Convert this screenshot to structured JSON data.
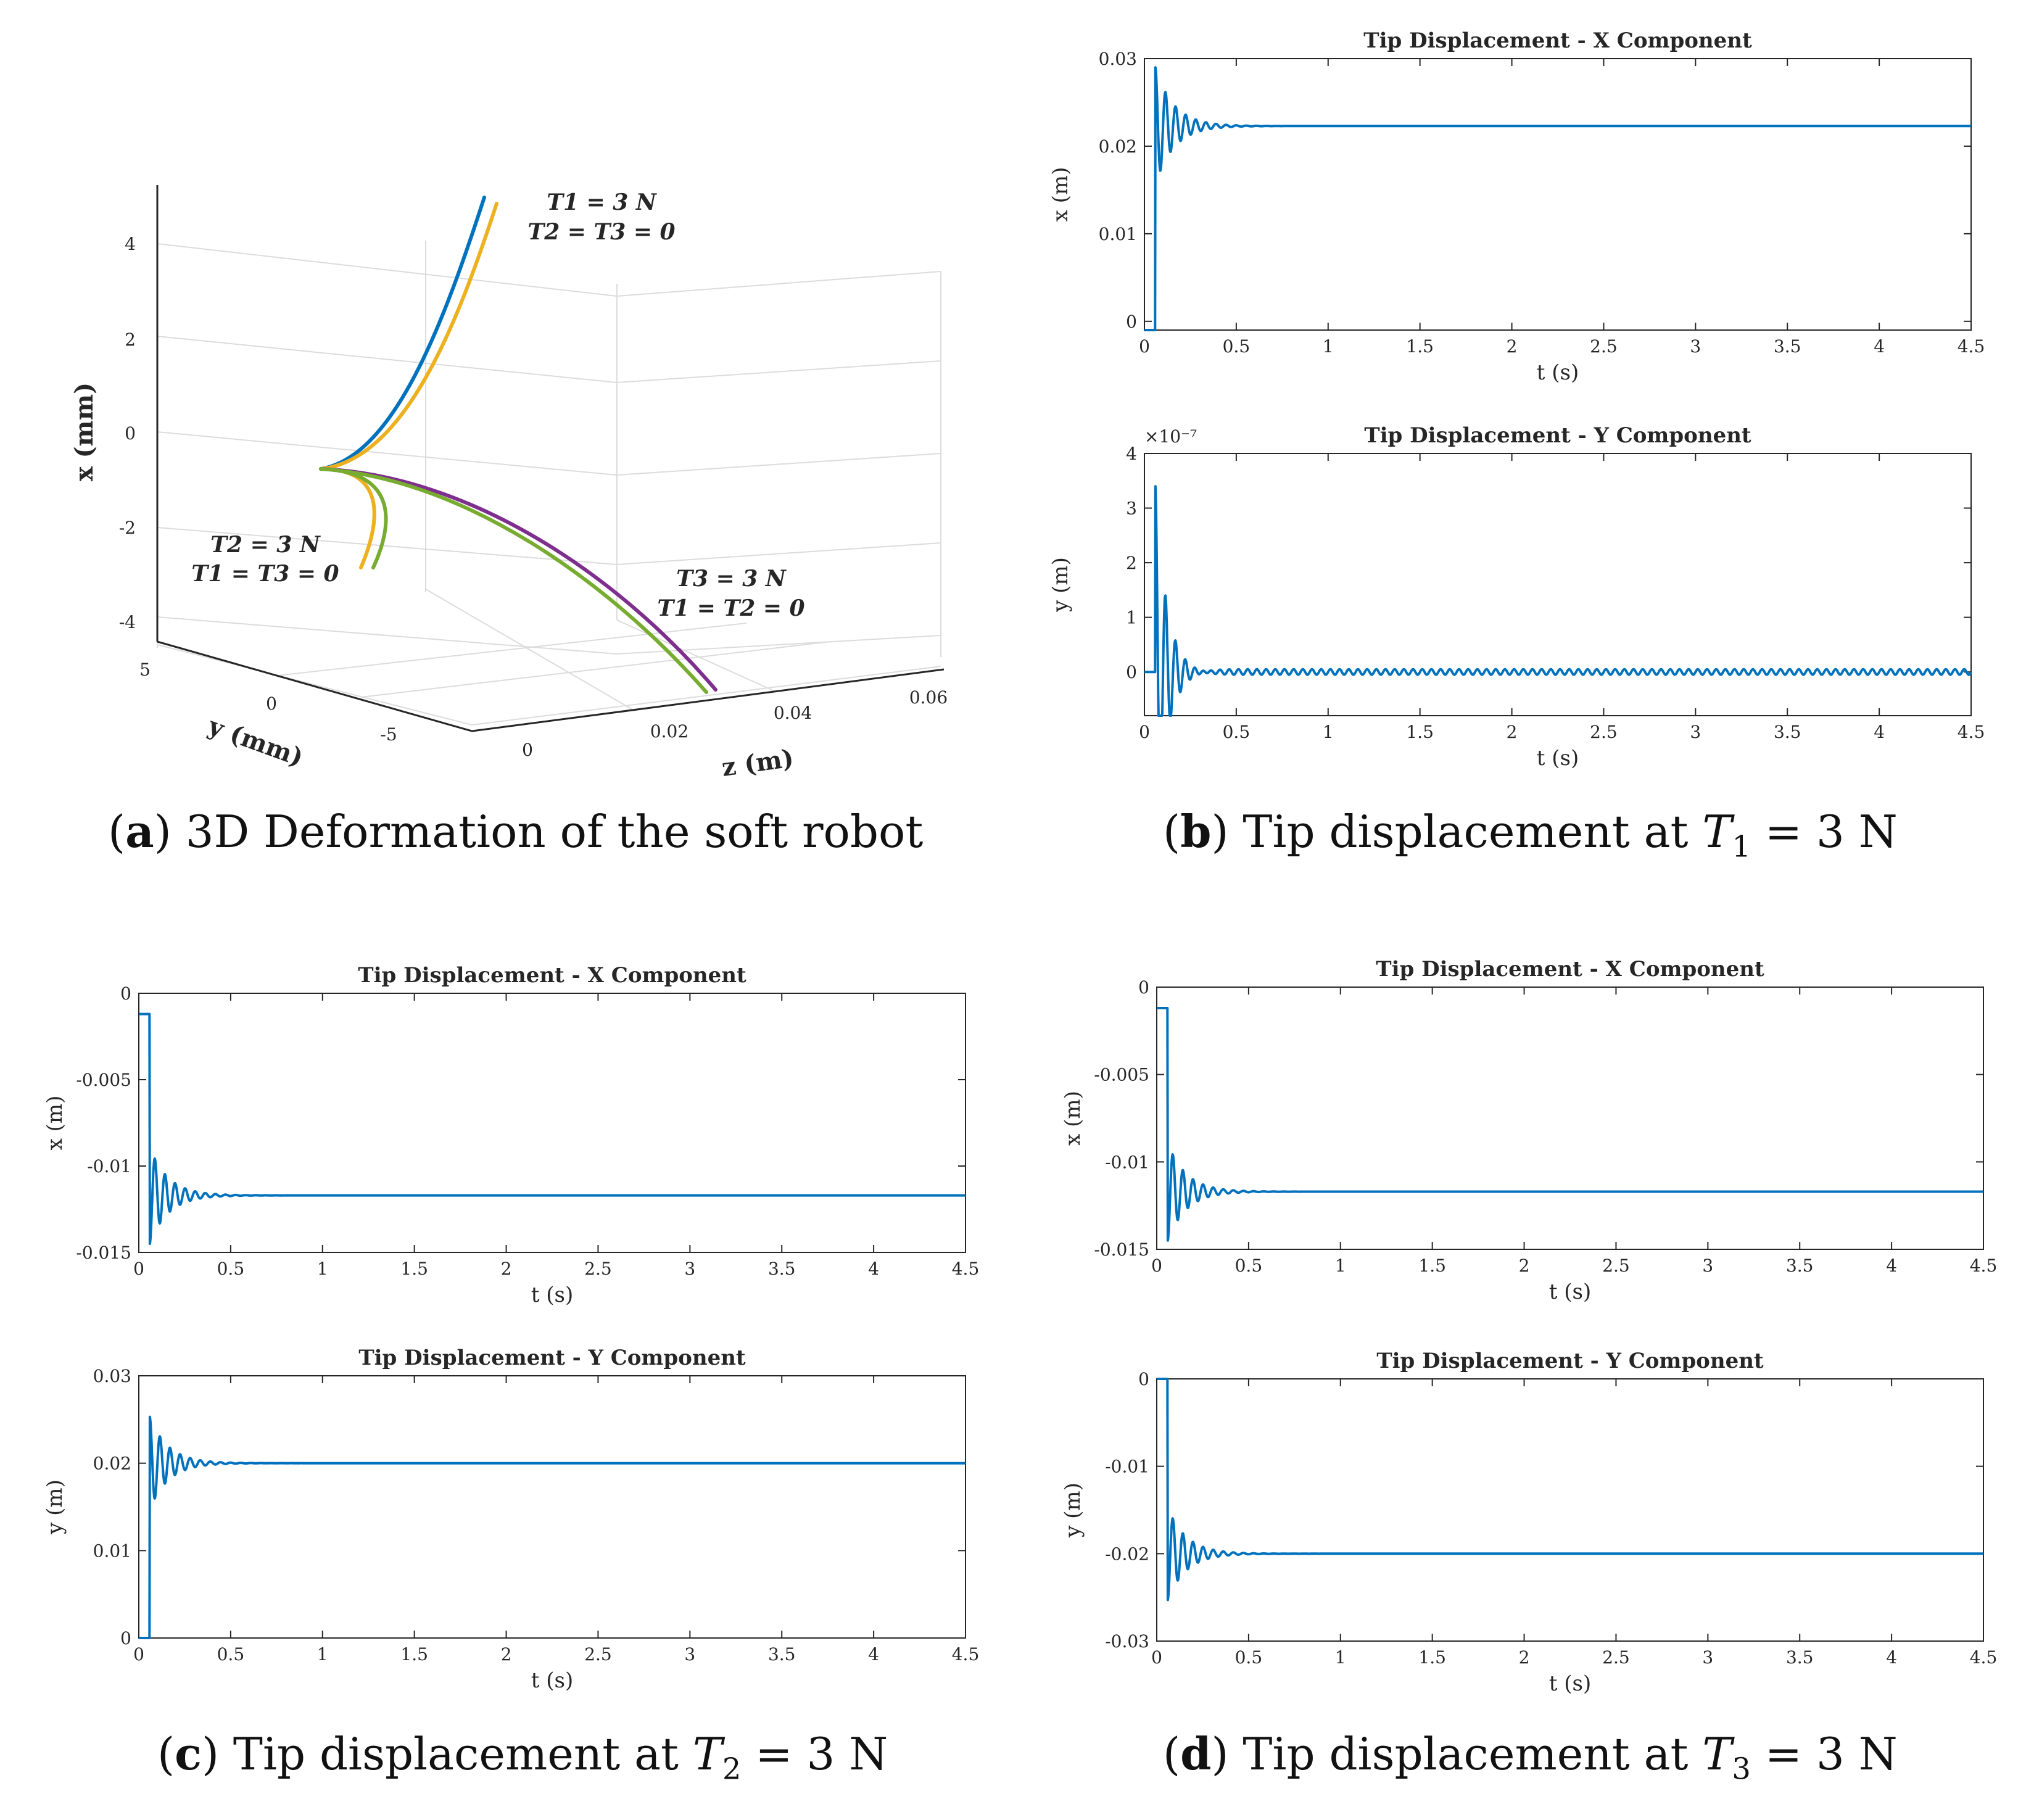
{
  "captions": {
    "a": {
      "letter": "a",
      "text": "3D Deformation of the soft robot"
    },
    "b": {
      "letter": "b",
      "text": "Tip displacement at ",
      "var": "T",
      "sub": "1",
      "rest": " = 3 N"
    },
    "c": {
      "letter": "c",
      "text": "Tip displacement at ",
      "var": "T",
      "sub": "2",
      "rest": " = 3 N"
    },
    "d": {
      "letter": "d",
      "text": "Tip displacement at ",
      "var": "T",
      "sub": "3",
      "rest": " = 3 N"
    }
  },
  "colors": {
    "blue": "#0072BD",
    "orange": "#EDB120",
    "green": "#77AC30",
    "purple": "#7E2F8E",
    "axis": "#262626",
    "grid": "#dcdcdc"
  },
  "chart_data": [
    {
      "id": "a",
      "type": "line3d",
      "xlabel": "x (mm)",
      "ylabel": "y (mm)",
      "zlabel": "z (m)",
      "x_ticks": [
        "4",
        "2",
        "0",
        "-2",
        "-4"
      ],
      "y_ticks": [
        "5",
        "0",
        "-5"
      ],
      "z_ticks": [
        "0",
        "0.02",
        "0.04",
        "0.06"
      ],
      "annotations": [
        {
          "lines": [
            "T1 = 3 N",
            "T2 = T3 = 0"
          ]
        },
        {
          "lines": [
            "T2 = 3 N",
            "T1 = T3 = 0"
          ]
        },
        {
          "lines": [
            "T3 = 3 N",
            "T1 = T2 = 0"
          ]
        }
      ],
      "series": [
        {
          "name": "T1 = 3 N (blue)",
          "color": "blue"
        },
        {
          "name": "T1 = 3 N (orange)",
          "color": "orange"
        },
        {
          "name": "T2 = 3 N (orange)",
          "color": "orange"
        },
        {
          "name": "T2 = 3 N (green)",
          "color": "green"
        },
        {
          "name": "T3 = 3 N (purple)",
          "color": "purple"
        },
        {
          "name": "T3 = 3 N (green)",
          "color": "green"
        }
      ]
    },
    {
      "id": "b1",
      "type": "line",
      "title": "Tip Displacement - X Component",
      "xlabel": "t (s)",
      "ylabel": "x (m)",
      "xlim": [
        0,
        4.5
      ],
      "ylim": [
        -0.001,
        0.03
      ],
      "xticks": [
        "0",
        "0.5",
        "1",
        "1.5",
        "2",
        "2.5",
        "3",
        "3.5",
        "4",
        "4.5"
      ],
      "yticks": [
        {
          "v": 0,
          "label": "0"
        },
        {
          "v": 0.01,
          "label": "0.01"
        },
        {
          "v": 0.02,
          "label": "0.02"
        },
        {
          "v": 0.03,
          "label": "0.03"
        }
      ],
      "response": {
        "start": -0.0012,
        "step_t": 0.06,
        "overshoot": 0.029,
        "final": 0.0223,
        "period": 0.055,
        "decay": 0.1,
        "ripple": 0
      },
      "exponent": ""
    },
    {
      "id": "b2",
      "type": "line",
      "title": "Tip Displacement - Y Component",
      "xlabel": "t (s)",
      "ylabel": "y (m)",
      "xlim": [
        0,
        4.5
      ],
      "ylim": [
        -0.8,
        4
      ],
      "xticks": [
        "0",
        "0.5",
        "1",
        "1.5",
        "2",
        "2.5",
        "3",
        "3.5",
        "4",
        "4.5"
      ],
      "yticks": [
        {
          "v": 0,
          "label": "0"
        },
        {
          "v": 1,
          "label": "1"
        },
        {
          "v": 2,
          "label": "2"
        },
        {
          "v": 3,
          "label": "3"
        },
        {
          "v": 4,
          "label": "4"
        }
      ],
      "response": {
        "start": 0,
        "step_t": 0.06,
        "overshoot": 3.35,
        "final": 0,
        "period": 0.055,
        "decay": 0.06,
        "ripple": 0.05
      },
      "exponent": "×10⁻⁷"
    },
    {
      "id": "c1",
      "type": "line",
      "title": "Tip Displacement - X Component",
      "xlabel": "t (s)",
      "ylabel": "x (m)",
      "xlim": [
        0,
        4.5
      ],
      "ylim": [
        -0.015,
        0
      ],
      "xticks": [
        "0",
        "0.5",
        "1",
        "1.5",
        "2",
        "2.5",
        "3",
        "3.5",
        "4",
        "4.5"
      ],
      "yticks": [
        {
          "v": 0,
          "label": "0"
        },
        {
          "v": -0.005,
          "label": "-0.005"
        },
        {
          "v": -0.01,
          "label": "-0.01"
        },
        {
          "v": -0.015,
          "label": "-0.015"
        }
      ],
      "response": {
        "start": -0.0012,
        "step_t": 0.06,
        "overshoot": -0.0145,
        "final": -0.0117,
        "period": 0.055,
        "decay": 0.1,
        "ripple": 0
      },
      "exponent": ""
    },
    {
      "id": "c2",
      "type": "line",
      "title": "Tip Displacement - Y Component",
      "xlabel": "t (s)",
      "ylabel": "y (m)",
      "xlim": [
        0,
        4.5
      ],
      "ylim": [
        0,
        0.03
      ],
      "xticks": [
        "0",
        "0.5",
        "1",
        "1.5",
        "2",
        "2.5",
        "3",
        "3.5",
        "4",
        "4.5"
      ],
      "yticks": [
        {
          "v": 0,
          "label": "0"
        },
        {
          "v": 0.01,
          "label": "0.01"
        },
        {
          "v": 0.02,
          "label": "0.02"
        },
        {
          "v": 0.03,
          "label": "0.03"
        }
      ],
      "response": {
        "start": 0,
        "step_t": 0.06,
        "overshoot": 0.0253,
        "final": 0.02,
        "period": 0.055,
        "decay": 0.1,
        "ripple": 0
      },
      "exponent": ""
    },
    {
      "id": "d1",
      "type": "line",
      "title": "Tip Displacement - X Component",
      "xlabel": "t (s)",
      "ylabel": "x (m)",
      "xlim": [
        0,
        4.5
      ],
      "ylim": [
        -0.015,
        0
      ],
      "xticks": [
        "0",
        "0.5",
        "1",
        "1.5",
        "2",
        "2.5",
        "3",
        "3.5",
        "4",
        "4.5"
      ],
      "yticks": [
        {
          "v": 0,
          "label": "0"
        },
        {
          "v": -0.005,
          "label": "-0.005"
        },
        {
          "v": -0.01,
          "label": "-0.01"
        },
        {
          "v": -0.015,
          "label": "-0.015"
        }
      ],
      "response": {
        "start": -0.0012,
        "step_t": 0.06,
        "overshoot": -0.0145,
        "final": -0.0117,
        "period": 0.055,
        "decay": 0.1,
        "ripple": 0
      },
      "exponent": ""
    },
    {
      "id": "d2",
      "type": "line",
      "title": "Tip Displacement - Y Component",
      "xlabel": "t (s)",
      "ylabel": "y (m)",
      "xlim": [
        0,
        4.5
      ],
      "ylim": [
        -0.03,
        0
      ],
      "xticks": [
        "0",
        "0.5",
        "1",
        "1.5",
        "2",
        "2.5",
        "3",
        "3.5",
        "4",
        "4.5"
      ],
      "yticks": [
        {
          "v": 0,
          "label": "0"
        },
        {
          "v": -0.01,
          "label": "-0.01"
        },
        {
          "v": -0.02,
          "label": "-0.02"
        },
        {
          "v": -0.03,
          "label": "-0.03"
        }
      ],
      "response": {
        "start": 0,
        "step_t": 0.06,
        "overshoot": -0.0253,
        "final": -0.02,
        "period": 0.055,
        "decay": 0.1,
        "ripple": 0
      },
      "exponent": ""
    }
  ]
}
